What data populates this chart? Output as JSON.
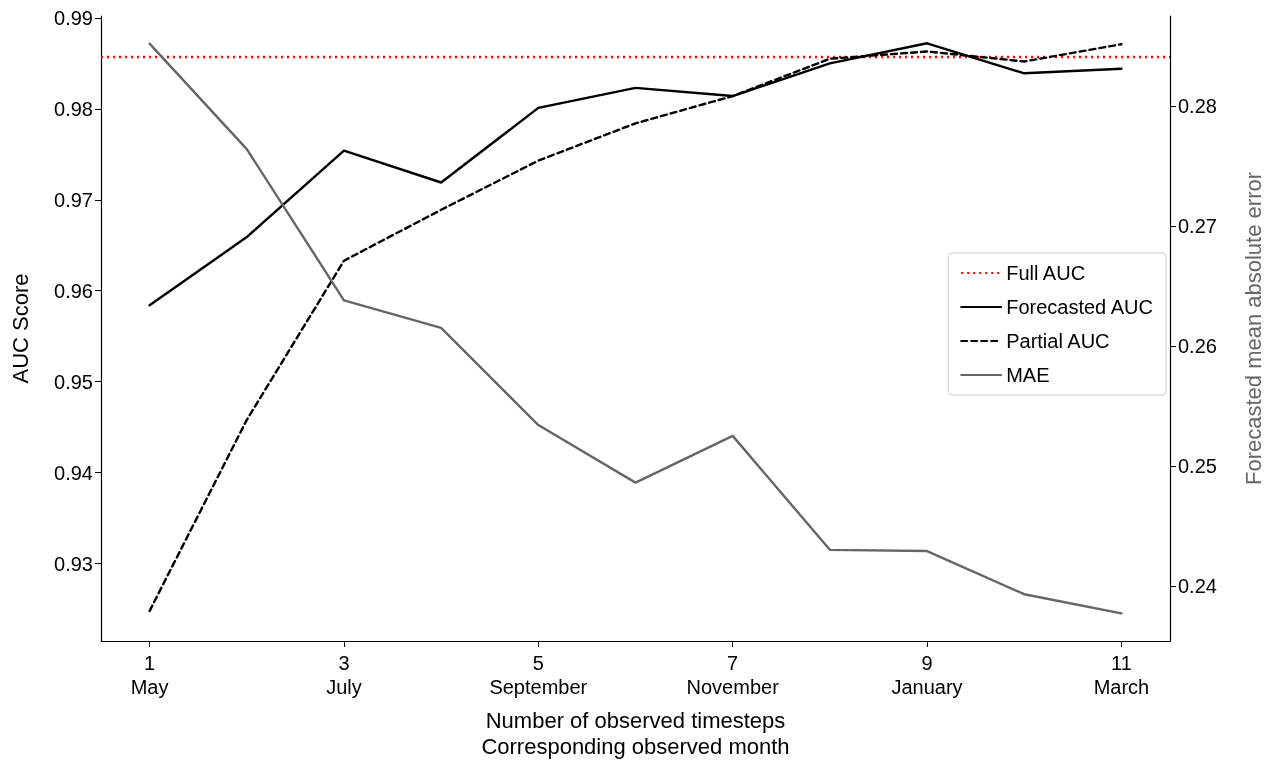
{
  "chart_data": {
    "type": "line",
    "xlabel": "Number of observed timesteps\nCorresponding observed month",
    "ylabel": "AUC Score",
    "y2label": "Forecasted mean absolute error",
    "categories": [
      "1\nMay",
      null,
      "3\nJuly",
      null,
      "5\nSeptember",
      null,
      "7\nNovember",
      null,
      "9\nJanuary",
      null,
      "11\nMarch"
    ],
    "ylim": [
      0.9215,
      0.9902
    ],
    "yticks": [
      0.93,
      0.94,
      0.95,
      0.96,
      0.97,
      0.98,
      0.99
    ],
    "y2lim": [
      0.2354,
      0.2875
    ],
    "y2ticks": [
      0.24,
      0.25,
      0.26,
      0.27,
      0.28
    ],
    "series": [
      {
        "name": "Forecasted AUC",
        "color": "#000000",
        "line_style": "solid",
        "values": [
          0.9584,
          0.9659,
          0.9754,
          0.9719,
          0.9801,
          0.9823,
          0.9814,
          0.985,
          0.9872,
          0.9839,
          0.9844
        ]
      },
      {
        "name": "Partial AUC",
        "color": "#000000",
        "line_style": "dashed",
        "values": [
          0.9248,
          0.9458,
          0.9633,
          0.9689,
          0.9743,
          0.9784,
          0.9814,
          0.9855,
          0.9863,
          0.9852,
          0.9871
        ]
      },
      {
        "name": "MAE",
        "color": "#666666",
        "line_style": "solid",
        "axis": "y2",
        "values": [
          0.2852,
          0.2764,
          0.2638,
          0.2615,
          0.2534,
          0.2486,
          0.2525,
          0.243,
          0.2429,
          0.2393,
          0.2377
        ]
      }
    ],
    "ref_lines": [
      {
        "axis": "y",
        "value": 0.9857,
        "label": "Full AUC",
        "color": "#ff0000",
        "line_style": "dotted"
      }
    ],
    "grid": false,
    "legend": "right",
    "marker": "none"
  }
}
